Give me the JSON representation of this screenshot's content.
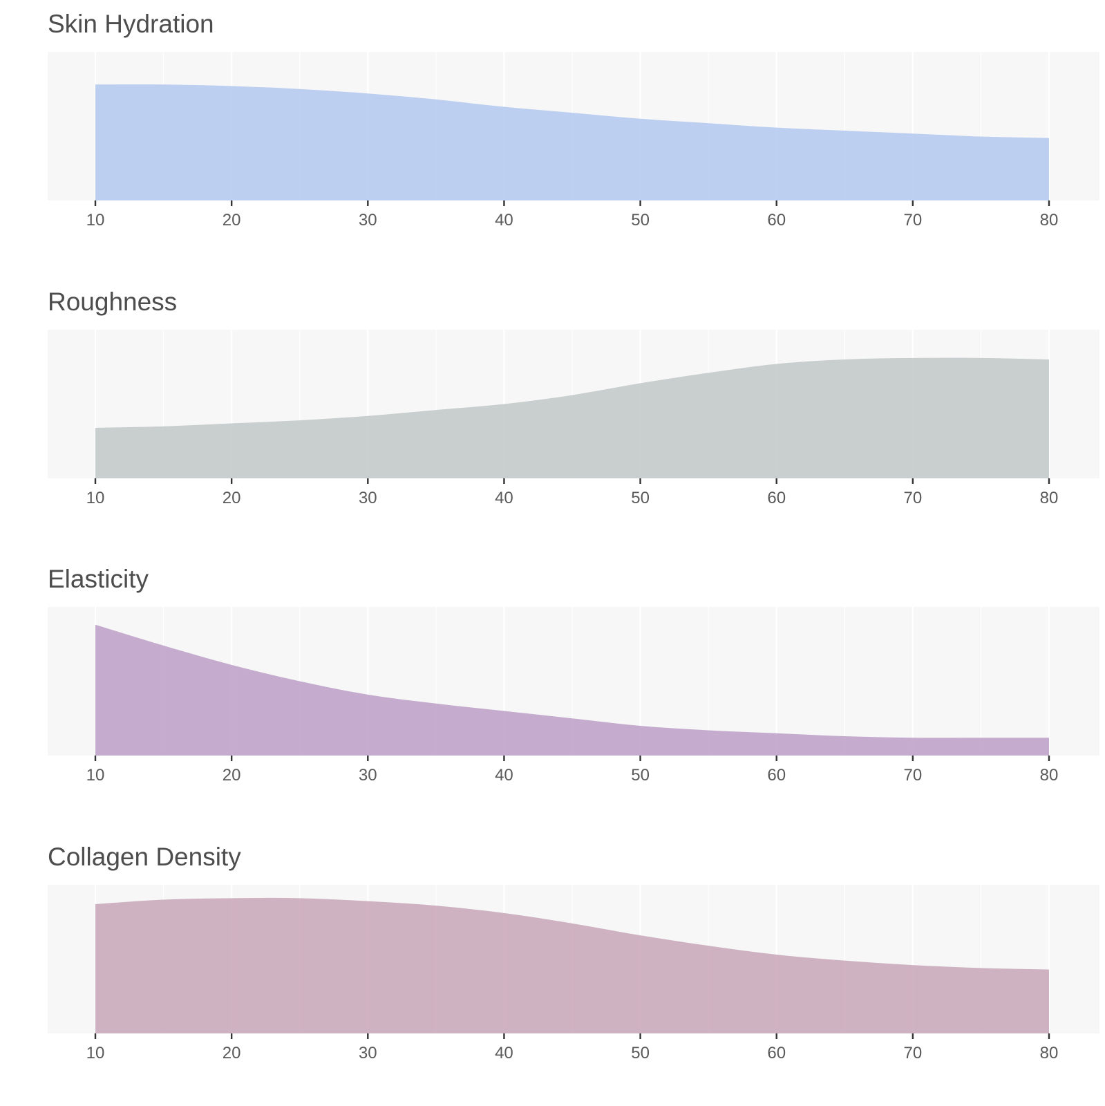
{
  "chart_data": [
    {
      "type": "area",
      "title": "Skin Hydration",
      "x": [
        10,
        15,
        20,
        25,
        30,
        35,
        40,
        45,
        50,
        55,
        60,
        65,
        70,
        75,
        80
      ],
      "values": [
        0.78,
        0.78,
        0.77,
        0.75,
        0.72,
        0.68,
        0.63,
        0.59,
        0.55,
        0.52,
        0.49,
        0.47,
        0.45,
        0.43,
        0.42
      ],
      "xlim": [
        10,
        80
      ],
      "ylim": [
        0,
        1
      ],
      "xticks": [
        "10",
        "20",
        "30",
        "40",
        "50",
        "60",
        "70",
        "80"
      ],
      "color": "#aec6ef",
      "grid": true
    },
    {
      "type": "area",
      "title": "Roughness",
      "x": [
        10,
        15,
        20,
        25,
        30,
        35,
        40,
        45,
        50,
        55,
        60,
        65,
        70,
        75,
        80
      ],
      "values": [
        0.34,
        0.35,
        0.37,
        0.39,
        0.42,
        0.46,
        0.5,
        0.56,
        0.64,
        0.71,
        0.77,
        0.8,
        0.81,
        0.81,
        0.8
      ],
      "xlim": [
        10,
        80
      ],
      "ylim": [
        0,
        1
      ],
      "xticks": [
        "10",
        "20",
        "30",
        "40",
        "50",
        "60",
        "70",
        "80"
      ],
      "color": "#bdc6c5",
      "grid": true
    },
    {
      "type": "area",
      "title": "Elasticity",
      "x": [
        10,
        15,
        20,
        25,
        30,
        35,
        40,
        45,
        50,
        55,
        60,
        65,
        70,
        75,
        80
      ],
      "values": [
        0.88,
        0.74,
        0.61,
        0.5,
        0.41,
        0.35,
        0.3,
        0.25,
        0.2,
        0.17,
        0.15,
        0.13,
        0.12,
        0.12,
        0.12
      ],
      "xlim": [
        10,
        80
      ],
      "ylim": [
        0,
        1
      ],
      "xticks": [
        "10",
        "20",
        "30",
        "40",
        "50",
        "60",
        "70",
        "80"
      ],
      "color": "#b99bc5",
      "grid": true
    },
    {
      "type": "area",
      "title": "Collagen Density",
      "x": [
        10,
        15,
        20,
        25,
        30,
        35,
        40,
        45,
        50,
        55,
        60,
        65,
        70,
        75,
        80
      ],
      "values": [
        0.87,
        0.9,
        0.91,
        0.91,
        0.89,
        0.86,
        0.81,
        0.74,
        0.66,
        0.59,
        0.53,
        0.49,
        0.46,
        0.44,
        0.43
      ],
      "xlim": [
        10,
        80
      ],
      "ylim": [
        0,
        1
      ],
      "xticks": [
        "10",
        "20",
        "30",
        "40",
        "50",
        "60",
        "70",
        "80"
      ],
      "color": "#c6a2b4",
      "grid": true
    }
  ]
}
